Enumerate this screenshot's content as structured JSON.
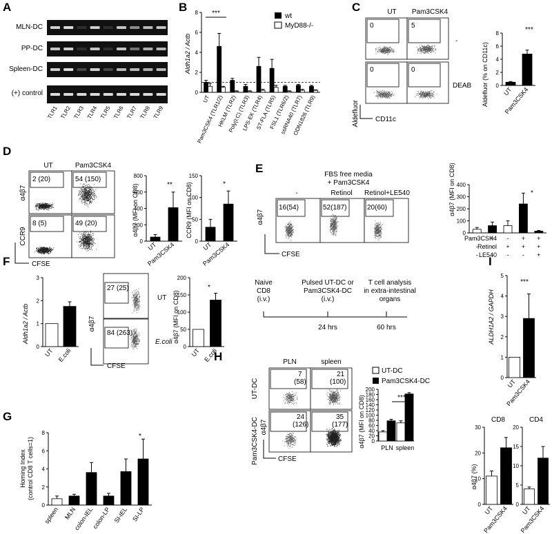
{
  "panel_labels": [
    "A",
    "B",
    "C",
    "D",
    "E",
    "F",
    "G",
    "H",
    "I"
  ],
  "A": {
    "rows": [
      "MLN-DC",
      "PP-DC",
      "Spleen-DC",
      "(+) control"
    ],
    "lanes": [
      "TLR1",
      "TLR2",
      "TLR3",
      "TLR4",
      "TLR5",
      "TLR6",
      "TLR7",
      "TLR8",
      "TLR9"
    ]
  },
  "B": {
    "ylabel": "Aldh1a2 / Actb",
    "legend": [
      "wt",
      "MyD88-/-"
    ],
    "sig": "***",
    "chart_data": {
      "type": "bar",
      "categories": [
        "UT",
        "Pam3CSK4 (TLR1/2)",
        "HKLM (TLR2)",
        "Poly(I:C) (TLR3)",
        "LPS-EK (TLR4)",
        "ST-FLA (TLR5)",
        "FSL1 (TLR6/2)",
        "ssRNA40 (TLR7)",
        "ODN1826 (TLR9)"
      ],
      "series": [
        {
          "name": "wt",
          "values": [
            1.0,
            4.6,
            1.2,
            0.6,
            2.6,
            2.4,
            0.6,
            0.7,
            0.6
          ]
        },
        {
          "name": "MyD88-/-",
          "values": [
            0.6,
            0.5,
            0.1,
            0.1,
            0.2,
            0.5,
            0.1,
            0.2,
            0.2
          ]
        }
      ],
      "errors": [
        [
          0.2,
          1.3,
          0.2,
          0.2,
          0.9,
          0.9,
          0.1,
          0.1,
          0.1
        ],
        [
          0.3,
          0.1,
          0.05,
          0.05,
          0.1,
          0.2,
          0.05,
          0.1,
          0.05
        ]
      ],
      "ylim": [
        0,
        8
      ],
      "yticks": [
        "0",
        "2",
        "4",
        "6",
        "8"
      ]
    }
  },
  "C": {
    "cols": [
      "UT",
      "Pam3CSK4"
    ],
    "gates": [
      "0",
      "5",
      "0",
      "0"
    ],
    "rowlabels": [
      "-",
      "DEAB"
    ],
    "xlab": "CD11c",
    "ylab": "Aldefluor",
    "bar_ylabel": "Aldefluor (% on CD11c)",
    "sig": "***",
    "chart_data": {
      "type": "bar",
      "categories": [
        "UT",
        "Pam3CSK4"
      ],
      "values": [
        0.5,
        4.8
      ],
      "errors": [
        0.1,
        0.6
      ],
      "ylim": [
        0,
        8
      ],
      "yticks": [
        "0",
        "2",
        "4",
        "6",
        "8"
      ]
    }
  },
  "D": {
    "cols": [
      "UT",
      "Pam3CSK4"
    ],
    "gates": [
      "2 (20)",
      "54 (150)",
      "8 (5)",
      "49 (20)"
    ],
    "rowlabels": [
      "α4β7",
      "CCR9"
    ],
    "xlab": "CFSE",
    "bars": [
      {
        "ylabel": "α4β7 (MFI on CD8)",
        "sig": "**",
        "chart_data": {
          "type": "bar",
          "categories": [
            "UT",
            "Pam3CSK4"
          ],
          "values": [
            50,
            410
          ],
          "errors": [
            30,
            190
          ],
          "ylim": [
            0,
            800
          ],
          "yticks": [
            "0",
            "200",
            "400",
            "600",
            "800"
          ]
        }
      },
      {
        "ylabel": "CCR9 (MFI on CD8)",
        "sig": "*",
        "chart_data": {
          "type": "bar",
          "categories": [
            "UT",
            "Pam3CSK4"
          ],
          "values": [
            32,
            85
          ],
          "errors": [
            18,
            30
          ],
          "ylim": [
            0,
            150
          ],
          "yticks": [
            "0",
            "50",
            "100",
            "150"
          ]
        }
      }
    ]
  },
  "E": {
    "header1": "FBS free media",
    "header2": "+ Pam3CSK4",
    "cols": [
      "-",
      "Retinol",
      "Retinol+LE540"
    ],
    "gates": [
      "16(54)",
      "52(187)",
      "20(60)"
    ],
    "ylab": "α4β7",
    "xlab": "CFSE",
    "bar_ylabel": "α4β7 (MFI on CD8)",
    "sig": "*",
    "rowlabels": [
      "Pam3CSK4",
      "Retinol",
      "LE540"
    ],
    "signs": [
      [
        "-",
        "+",
        "-",
        "+",
        "+"
      ],
      [
        "-",
        "-",
        "+",
        "+",
        "+"
      ],
      [
        "-",
        "-",
        "-",
        "-",
        "+"
      ]
    ],
    "chart_data": {
      "type": "bar",
      "categories": [
        "1",
        "2",
        "3",
        "4",
        "5"
      ],
      "values": [
        30,
        60,
        60,
        240,
        15
      ],
      "errors": [
        15,
        30,
        40,
        90,
        5
      ],
      "ylim": [
        0,
        400
      ],
      "yticks": [
        "0",
        "100",
        "200",
        "300",
        "400"
      ]
    }
  },
  "F": {
    "ylabel1": "Aldh1a2 / Actb",
    "gates": [
      "27 (25)",
      "84 (263)"
    ],
    "rowlabels": [
      "UT",
      "E.coli"
    ],
    "xlab": "CFSE",
    "ylab": "α4β7",
    "ylabel2": "α4β7 (MFI on CD8)",
    "sig": "*",
    "chart_data": [
      {
        "type": "bar",
        "categories": [
          "UT",
          "E.coli"
        ],
        "values": [
          1.0,
          1.75
        ],
        "errors": [
          0,
          0.2
        ],
        "ylim": [
          0,
          3
        ],
        "yticks": [
          "0",
          "1",
          "2",
          "3"
        ]
      },
      {
        "type": "bar",
        "categories": [
          "UT",
          "E.coli"
        ],
        "values": [
          50,
          135
        ],
        "errors": [
          0,
          20
        ],
        "ylim": [
          0,
          200
        ],
        "yticks": [
          "0",
          "50",
          "100",
          "150",
          "200"
        ]
      }
    ]
  },
  "G": {
    "ylabel1": "Homing Index",
    "ylabel2": "(control CD8 T cells=1)",
    "sig": "*",
    "chart_data": {
      "type": "bar",
      "categories": [
        "spleen",
        "MLN",
        "colon-IEL",
        "colon-LP",
        "SI-IEL",
        "SI-LP"
      ],
      "values": [
        0.7,
        1.0,
        3.6,
        1.0,
        3.7,
        5.1
      ],
      "errors": [
        0.3,
        0.2,
        1.1,
        0.3,
        1.4,
        2.2
      ],
      "ylim": [
        0,
        8
      ],
      "yticks": [
        "0",
        "2",
        "4",
        "6",
        "8"
      ]
    }
  },
  "H": {
    "timeline": [
      {
        "top": "Naive",
        "mid": "CD8",
        "bot": "(i.v.)",
        "time": ""
      },
      {
        "top": "Pulsed UT-DC or",
        "mid": "Pam3CSK4-DC",
        "bot": "(i.v.)",
        "time": "24 hrs"
      },
      {
        "top": "T cell analysis",
        "mid": "in extra-intestinal",
        "bot": "organs",
        "time": "60 hrs"
      }
    ],
    "cols": [
      "PLN",
      "spleen"
    ],
    "gates": [
      [
        "7",
        "(58)"
      ],
      [
        "21",
        "(100)"
      ],
      [
        "24",
        "(126)"
      ],
      [
        "35",
        "(177)"
      ]
    ],
    "rowlabels": [
      "UT-DC",
      "Pam3CSK4-DC"
    ],
    "xlab": "CFSE",
    "ylab": "α4β7",
    "legend": [
      "UT-DC",
      "Pam3CSK4-DC"
    ],
    "bar_ylabel": "α4β7 (MFI on CD8)",
    "sig": "***",
    "chart_data": {
      "type": "bar",
      "categories": [
        "PLN",
        "spleen"
      ],
      "series": [
        {
          "name": "UT-DC",
          "values": [
            35,
            70
          ]
        },
        {
          "name": "Pam3CSK4-DC",
          "values": [
            78,
            182
          ]
        }
      ],
      "errors": [
        [
          5,
          8
        ],
        [
          6,
          5
        ]
      ],
      "ylim": [
        0,
        200
      ],
      "yticks": [
        "0",
        "20",
        "40",
        "60",
        "80",
        "100",
        "120",
        "140",
        "160",
        "180",
        "200"
      ]
    }
  },
  "I": {
    "ylabel1": "ALDH1A2 / GAPDH",
    "sig": "***",
    "chart_data": [
      {
        "type": "bar",
        "categories": [
          "UT",
          "Pam3CSK4"
        ],
        "values": [
          1.0,
          2.9
        ],
        "errors": [
          0,
          1.2
        ],
        "ylim": [
          0,
          5
        ],
        "yticks": [
          "0",
          "1",
          "2",
          "3",
          "4",
          "5"
        ]
      },
      {
        "type": "bar",
        "title": "CD8",
        "categories": [
          "UT",
          "Pam3CSK4"
        ],
        "values": [
          11,
          22
        ],
        "errors": [
          2,
          4
        ],
        "ylim": [
          0,
          30
        ],
        "yticks": [
          "0",
          "10",
          "20",
          "30"
        ]
      },
      {
        "type": "bar",
        "title": "CD4",
        "categories": [
          "UT",
          "Pam3CSK4"
        ],
        "values": [
          4,
          12
        ],
        "errors": [
          0.5,
          3
        ],
        "ylim": [
          0,
          20
        ],
        "yticks": [
          "0",
          "5",
          "10",
          "15",
          "20"
        ]
      }
    ],
    "ylabel2": "α4β7 (%)"
  }
}
